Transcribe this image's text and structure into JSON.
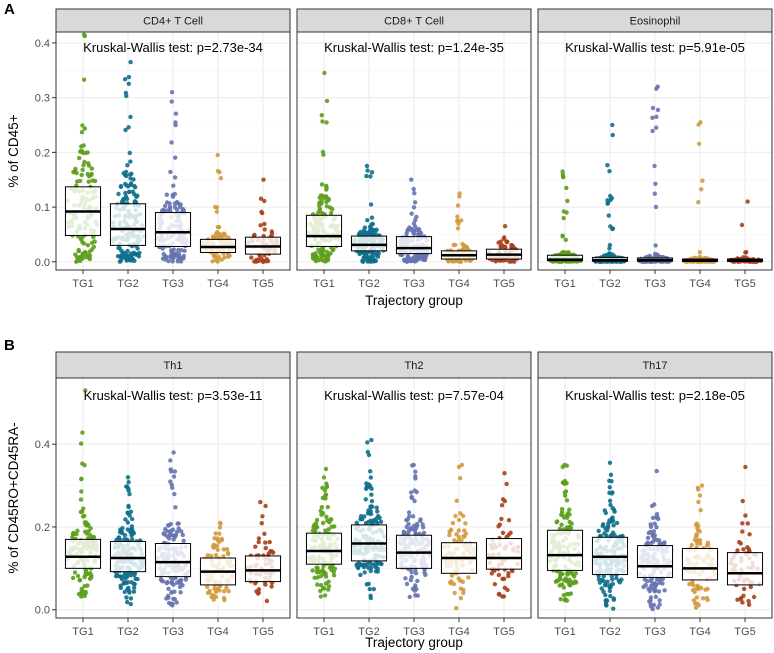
{
  "colors": {
    "TG1": "#5c9e1a",
    "TG2": "#0f6f8c",
    "TG3": "#6673b0",
    "TG4": "#d39a3e",
    "TG5": "#a8401b"
  },
  "chart_data": [
    {
      "type": "box+jitter",
      "tag": "A",
      "ylabel": "% of CD45+",
      "xlabel": "Trajectory group",
      "categories": [
        "TG1",
        "TG2",
        "TG3",
        "TG4",
        "TG5"
      ],
      "ylim": [
        -0.015,
        0.42
      ],
      "yticks": [
        0.0,
        0.1,
        0.2,
        0.3,
        0.4
      ],
      "ytick_labels": [
        "0.0",
        "0.1",
        "0.2",
        "0.3",
        "0.4"
      ],
      "panels": [
        {
          "title": "CD4+ T Cell",
          "annotation": "Kruskal-Wallis test: p=2.73e-34",
          "groups": [
            {
              "name": "TG1",
              "q1": 0.048,
              "median": 0.092,
              "q3": 0.137,
              "min": 0.0,
              "max": 0.415,
              "n": 130
            },
            {
              "name": "TG2",
              "q1": 0.03,
              "median": 0.06,
              "q3": 0.106,
              "min": 0.0,
              "max": 0.365,
              "n": 160
            },
            {
              "name": "TG3",
              "q1": 0.028,
              "median": 0.054,
              "q3": 0.09,
              "min": 0.0,
              "max": 0.31,
              "n": 140
            },
            {
              "name": "TG4",
              "q1": 0.017,
              "median": 0.027,
              "q3": 0.041,
              "min": 0.0,
              "max": 0.195,
              "n": 90
            },
            {
              "name": "TG5",
              "q1": 0.014,
              "median": 0.028,
              "q3": 0.045,
              "min": 0.0,
              "max": 0.15,
              "n": 60
            }
          ]
        },
        {
          "title": "CD8+ T Cell",
          "annotation": "Kruskal-Wallis test: p=1.24e-35",
          "groups": [
            {
              "name": "TG1",
              "q1": 0.028,
              "median": 0.047,
              "q3": 0.085,
              "min": 0.0,
              "max": 0.345,
              "n": 130
            },
            {
              "name": "TG2",
              "q1": 0.02,
              "median": 0.031,
              "q3": 0.047,
              "min": 0.0,
              "max": 0.175,
              "n": 160
            },
            {
              "name": "TG3",
              "q1": 0.015,
              "median": 0.025,
              "q3": 0.046,
              "min": 0.0,
              "max": 0.15,
              "n": 140
            },
            {
              "name": "TG4",
              "q1": 0.005,
              "median": 0.012,
              "q3": 0.02,
              "min": 0.0,
              "max": 0.125,
              "n": 90
            },
            {
              "name": "TG5",
              "q1": 0.005,
              "median": 0.013,
              "q3": 0.023,
              "min": 0.0,
              "max": 0.065,
              "n": 60
            }
          ]
        },
        {
          "title": "Eosinophil",
          "annotation": "Kruskal-Wallis test: p=5.91e-05",
          "groups": [
            {
              "name": "TG1",
              "q1": 0.002,
              "median": 0.004,
              "q3": 0.012,
              "min": 0.0,
              "max": 0.165,
              "n": 130
            },
            {
              "name": "TG2",
              "q1": 0.001,
              "median": 0.003,
              "q3": 0.008,
              "min": 0.0,
              "max": 0.25,
              "n": 160
            },
            {
              "name": "TG3",
              "q1": 0.001,
              "median": 0.003,
              "q3": 0.007,
              "min": 0.0,
              "max": 0.32,
              "n": 140
            },
            {
              "name": "TG4",
              "q1": 0.001,
              "median": 0.002,
              "q3": 0.005,
              "min": 0.0,
              "max": 0.255,
              "n": 90
            },
            {
              "name": "TG5",
              "q1": 0.001,
              "median": 0.002,
              "q3": 0.005,
              "min": 0.0,
              "max": 0.11,
              "n": 60
            }
          ]
        }
      ]
    },
    {
      "type": "box+jitter",
      "tag": "B",
      "ylabel": "% of CD45RO+CD45RA-",
      "xlabel": "Trajectory group",
      "categories": [
        "TG1",
        "TG2",
        "TG3",
        "TG4",
        "TG5"
      ],
      "ylim": [
        -0.02,
        0.56
      ],
      "yticks": [
        0.0,
        0.2,
        0.4
      ],
      "ytick_labels": [
        "0.0",
        "0.2",
        "0.4"
      ],
      "panels": [
        {
          "title": "Th1",
          "annotation": "Kruskal-Wallis test: p=3.53e-11",
          "groups": [
            {
              "name": "TG1",
              "q1": 0.1,
              "median": 0.128,
              "q3": 0.17,
              "min": 0.03,
              "max": 0.53,
              "n": 130
            },
            {
              "name": "TG2",
              "q1": 0.092,
              "median": 0.125,
              "q3": 0.165,
              "min": 0.01,
              "max": 0.32,
              "n": 160
            },
            {
              "name": "TG3",
              "q1": 0.08,
              "median": 0.115,
              "q3": 0.16,
              "min": 0.01,
              "max": 0.38,
              "n": 140
            },
            {
              "name": "TG4",
              "q1": 0.06,
              "median": 0.092,
              "q3": 0.125,
              "min": 0.02,
              "max": 0.21,
              "n": 90
            },
            {
              "name": "TG5",
              "q1": 0.068,
              "median": 0.095,
              "q3": 0.13,
              "min": 0.02,
              "max": 0.26,
              "n": 60
            }
          ]
        },
        {
          "title": "Th2",
          "annotation": "Kruskal-Wallis test: p=7.57e-04",
          "groups": [
            {
              "name": "TG1",
              "q1": 0.11,
              "median": 0.142,
              "q3": 0.185,
              "min": 0.01,
              "max": 0.34,
              "n": 130
            },
            {
              "name": "TG2",
              "q1": 0.118,
              "median": 0.16,
              "q3": 0.205,
              "min": 0.02,
              "max": 0.41,
              "n": 160
            },
            {
              "name": "TG3",
              "q1": 0.1,
              "median": 0.138,
              "q3": 0.18,
              "min": 0.03,
              "max": 0.35,
              "n": 140
            },
            {
              "name": "TG4",
              "q1": 0.088,
              "median": 0.125,
              "q3": 0.162,
              "min": 0.0,
              "max": 0.35,
              "n": 90
            },
            {
              "name": "TG5",
              "q1": 0.098,
              "median": 0.125,
              "q3": 0.172,
              "min": 0.03,
              "max": 0.33,
              "n": 60
            }
          ]
        },
        {
          "title": "Th17",
          "annotation": "Kruskal-Wallis test: p=2.18e-05",
          "groups": [
            {
              "name": "TG1",
              "q1": 0.095,
              "median": 0.132,
              "q3": 0.192,
              "min": 0.02,
              "max": 0.35,
              "n": 130
            },
            {
              "name": "TG2",
              "q1": 0.085,
              "median": 0.128,
              "q3": 0.175,
              "min": 0.0,
              "max": 0.355,
              "n": 160
            },
            {
              "name": "TG3",
              "q1": 0.078,
              "median": 0.105,
              "q3": 0.155,
              "min": 0.0,
              "max": 0.335,
              "n": 140
            },
            {
              "name": "TG4",
              "q1": 0.072,
              "median": 0.1,
              "q3": 0.148,
              "min": 0.0,
              "max": 0.3,
              "n": 90
            },
            {
              "name": "TG5",
              "q1": 0.06,
              "median": 0.088,
              "q3": 0.138,
              "min": 0.01,
              "max": 0.345,
              "n": 60
            }
          ]
        }
      ]
    }
  ]
}
